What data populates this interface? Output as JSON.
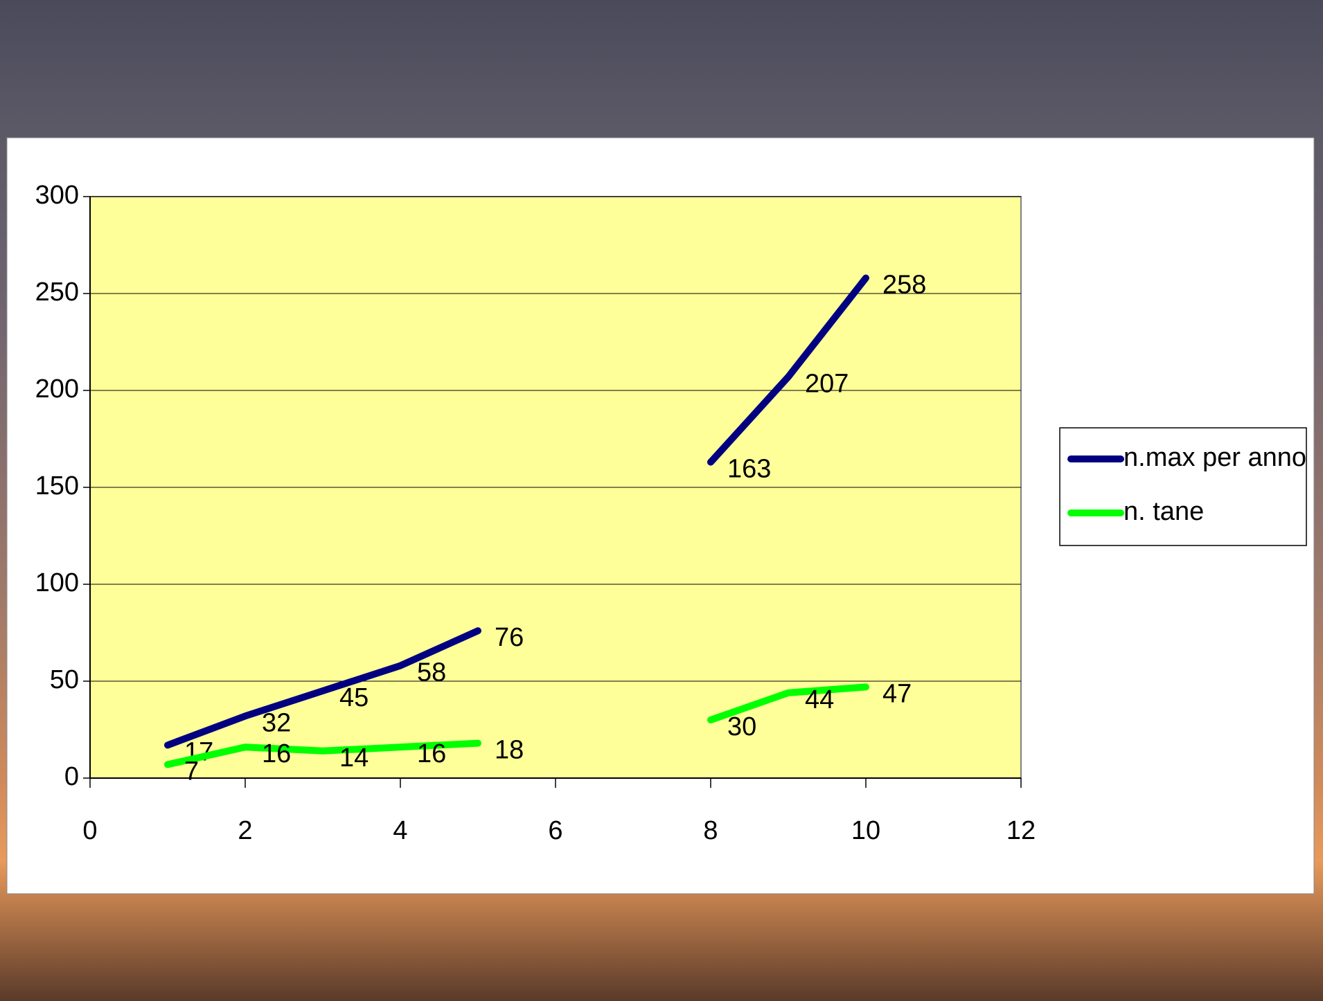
{
  "chart_data": {
    "type": "line",
    "x": [
      1,
      2,
      3,
      4,
      5,
      6,
      7,
      8,
      9,
      10
    ],
    "series": [
      {
        "name": "n.max per anno",
        "color": "#000080",
        "values": [
          17,
          32,
          45,
          58,
          76,
          null,
          null,
          163,
          207,
          258
        ]
      },
      {
        "name": "n. tane",
        "color": "#00ff00",
        "values": [
          7,
          16,
          14,
          16,
          18,
          null,
          null,
          30,
          44,
          47
        ]
      }
    ],
    "xlim": [
      0,
      12
    ],
    "xticks": [
      0,
      2,
      4,
      6,
      8,
      10,
      12
    ],
    "ylim": [
      0,
      300
    ],
    "yticks": [
      0,
      50,
      100,
      150,
      200,
      250,
      300
    ],
    "grid": true,
    "legend": "right",
    "plot_background": "#ffff99"
  }
}
